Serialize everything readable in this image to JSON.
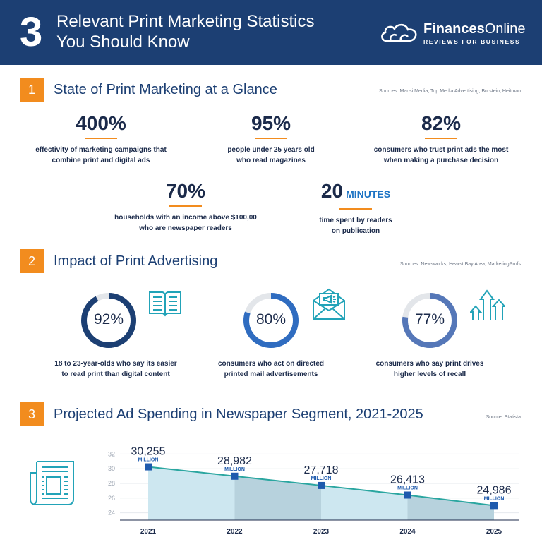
{
  "header": {
    "number": "3",
    "title_line1": "Relevant Print Marketing Statistics",
    "title_line2": "You Should Know",
    "brand_bold": "Finances",
    "brand_light": "Online",
    "tagline": "REVIEWS FOR BUSINESS"
  },
  "section1": {
    "number": "1",
    "title": "State of Print Marketing at a Glance",
    "sources": "Sources: Mansi Media, Top Media Advertising, Burstein, Heitman",
    "stats": [
      {
        "value": "400%",
        "unit": "",
        "line1": "effectivity of marketing campaigns that",
        "line2": "combine print and digital ads"
      },
      {
        "value": "95%",
        "unit": "",
        "line1": "people under 25 years old",
        "line2": "who read magazines"
      },
      {
        "value": "82%",
        "unit": "",
        "line1": "consumers who trust print ads the most",
        "line2": "when making a purchase decision"
      },
      {
        "value": "70%",
        "unit": "",
        "line1": "households with an income above $100,00",
        "line2": "who are newspaper readers"
      },
      {
        "value": "20",
        "unit": "MINUTES",
        "line1": "time spent by readers",
        "line2": "on publication"
      }
    ]
  },
  "section2": {
    "number": "2",
    "title": "Impact of Print Advertising",
    "sources": "Sources: Newsworks, Hearst Bay Area, MarketingProfs",
    "items": [
      {
        "label": "92%",
        "fraction": 0.92,
        "color": "#1c3f73",
        "line1": "18 to 23-year-olds who say its easier",
        "line2": "to read print than digital content",
        "icon": "open-book-icon"
      },
      {
        "label": "80%",
        "fraction": 0.8,
        "color": "#2f6cc0",
        "line1": "consumers who act on directed",
        "line2": "printed mail advertisements",
        "icon": "mail-envelope-icon"
      },
      {
        "label": "77%",
        "fraction": 0.77,
        "color": "#5577b8",
        "line1": "consumers who say print drives",
        "line2": "higher levels of recall",
        "icon": "growth-arrows-icon"
      }
    ]
  },
  "section3": {
    "number": "3",
    "title": "Projected Ad Spending in Newspaper Segment, 2021-2025",
    "sources": "Source: Statista"
  },
  "chart_data": {
    "type": "area",
    "x": [
      "2021",
      "2022",
      "2023",
      "2024",
      "2025"
    ],
    "values": [
      30255,
      28982,
      27718,
      26413,
      24986
    ],
    "value_labels": [
      "30,255",
      "28,982",
      "27,718",
      "26,413",
      "24,986"
    ],
    "value_unit": "MILLION",
    "yticks": [
      "32",
      "30",
      "28",
      "26",
      "24"
    ],
    "ylim": [
      23000,
      33000
    ],
    "colors": {
      "line": "#2aa6a0",
      "marker": "#1e5aad",
      "fill_a": "#cde7f0",
      "fill_b": "#b7d2dd"
    }
  }
}
